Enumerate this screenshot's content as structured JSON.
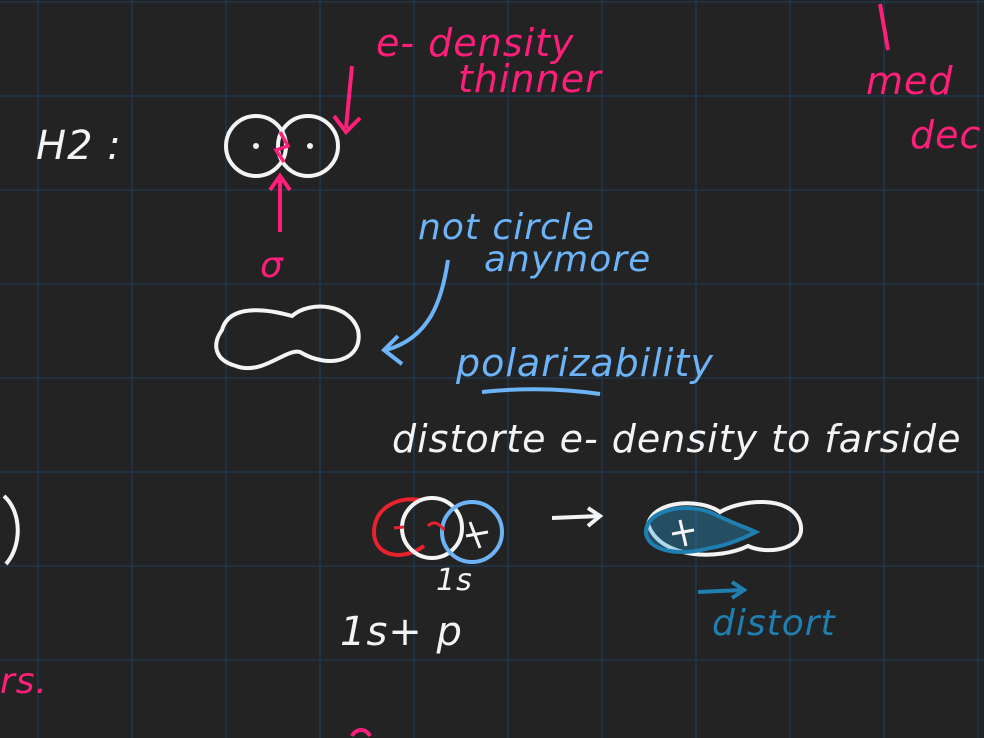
{
  "colors": {
    "background": "#232323",
    "grid": "#1f3b56",
    "pink_ink": "#ff1f7a",
    "white_ink": "#f4f4f4",
    "light_blue_ink": "#6cb4f7",
    "teal_ink": "#1e7fb0",
    "red_ink": "#e8222e"
  },
  "notes": {
    "h2_label": "H2 :",
    "e_density": "e- density",
    "thinner": "thinner",
    "sigma": "σ",
    "not_circle": "not circle",
    "anymore": "anymore",
    "polarizability": "polarizability",
    "distort_line": "distorte e- density to farside",
    "one_s": "1s",
    "one_s_plus_p": "1s+ p",
    "distort": "distort",
    "right_top": "med",
    "right_bottom": "dec",
    "left_fragment": "rs.",
    "plus_charge": "+",
    "minus_charge": "-"
  }
}
